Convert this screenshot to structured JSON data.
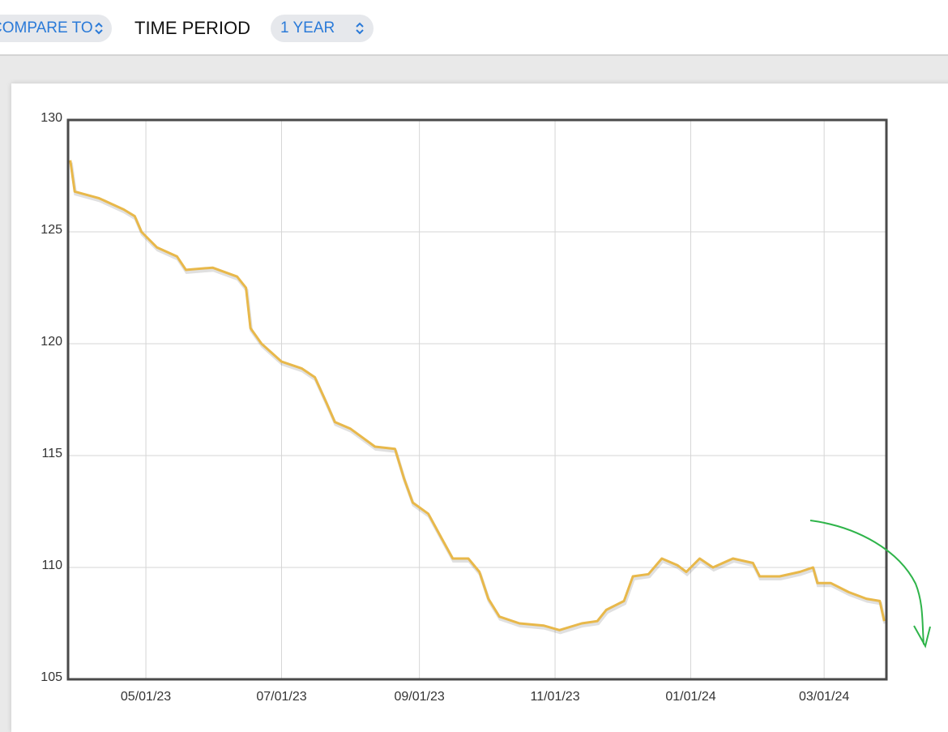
{
  "toolbar": {
    "compare_label": "COMPARE TO",
    "period_label": "TIME PERIOD",
    "period_value": "1 YEAR"
  },
  "chart_data": {
    "type": "line",
    "x": [
      "03/28/23",
      "03/30/23",
      "04/10/23",
      "04/21/23",
      "04/26/23",
      "04/29/23",
      "05/06/23",
      "05/15/23",
      "05/19/23",
      "05/31/23",
      "06/11/23",
      "06/15/23",
      "06/17/23",
      "06/22/23",
      "07/01/23",
      "07/10/23",
      "07/16/23",
      "07/21/23",
      "07/25/23",
      "08/01/23",
      "08/12/23",
      "08/21/23",
      "08/25/23",
      "08/29/23",
      "09/05/23",
      "09/11/23",
      "09/16/23",
      "09/23/23",
      "09/28/23",
      "10/02/23",
      "10/07/23",
      "10/16/23",
      "10/27/23",
      "11/03/23",
      "11/13/23",
      "11/20/23",
      "11/24/23",
      "12/02/23",
      "12/06/23",
      "12/13/23",
      "12/19/23",
      "12/26/23",
      "12/30/23",
      "01/05/24",
      "01/11/24",
      "01/20/24",
      "01/29/24",
      "02/01/24",
      "02/10/24",
      "02/19/24",
      "02/25/24",
      "02/27/24",
      "03/04/24",
      "03/12/24",
      "03/20/24",
      "03/26/24",
      "03/28/24"
    ],
    "series": [
      {
        "color": "#e8b84a",
        "values": [
          128.2,
          126.8,
          126.5,
          126.0,
          125.7,
          125.0,
          124.3,
          123.9,
          123.3,
          123.4,
          123.0,
          122.5,
          120.7,
          120.0,
          119.2,
          118.9,
          118.5,
          117.4,
          116.5,
          116.2,
          115.4,
          115.3,
          114.0,
          112.9,
          112.4,
          111.3,
          110.4,
          110.4,
          109.8,
          108.6,
          107.8,
          107.5,
          107.4,
          107.2,
          107.5,
          107.6,
          108.1,
          108.5,
          109.6,
          109.7,
          110.4,
          110.1,
          109.8,
          110.4,
          110.0,
          110.4,
          110.2,
          109.6,
          109.6,
          109.8,
          110.0,
          109.3,
          109.3,
          108.9,
          108.6,
          108.5,
          107.6
        ]
      }
    ],
    "xlim": [
      "03/27/23",
      "03/29/24"
    ],
    "xticks": [
      "05/01/23",
      "07/01/23",
      "09/01/23",
      "11/01/23",
      "01/01/24",
      "03/01/24"
    ],
    "ylim": [
      105,
      130
    ],
    "yticks": [
      105,
      110,
      115,
      120,
      125,
      130
    ],
    "grid": true
  }
}
